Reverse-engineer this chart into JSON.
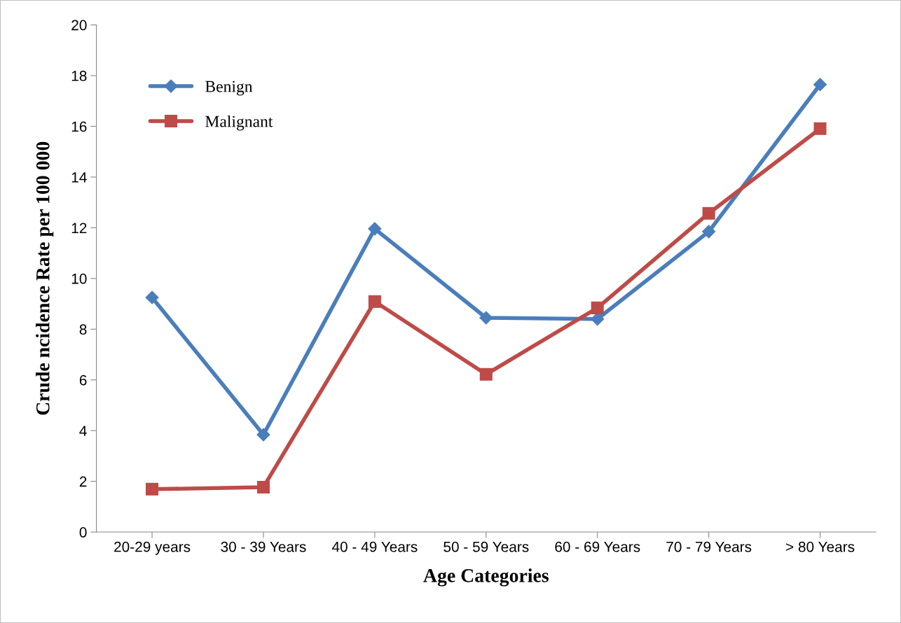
{
  "chart_data": {
    "type": "line",
    "xlabel": "Age Categories",
    "ylabel": "Crude ncidence Rate per 100 000",
    "categories": [
      "20-29 years",
      "30 - 39 Years",
      "40 - 49 Years",
      "50 - 59 Years",
      "60 - 69 Years",
      "70 - 79 Years",
      "> 80 Years"
    ],
    "series": [
      {
        "name": "Benign",
        "color": "#4a7ebb",
        "marker": "diamond",
        "values": [
          9.25,
          3.84,
          11.96,
          8.45,
          8.4,
          11.85,
          17.65
        ]
      },
      {
        "name": "Malignant",
        "color": "#be4b48",
        "marker": "square",
        "values": [
          1.69,
          1.77,
          9.09,
          6.22,
          8.84,
          12.57,
          15.91
        ]
      }
    ],
    "ylim": [
      0,
      20
    ],
    "yticks": [
      0,
      2,
      4,
      6,
      8,
      10,
      12,
      14,
      16,
      18,
      20
    ],
    "grid": false,
    "legend": "top left",
    "line_style": "solid"
  }
}
